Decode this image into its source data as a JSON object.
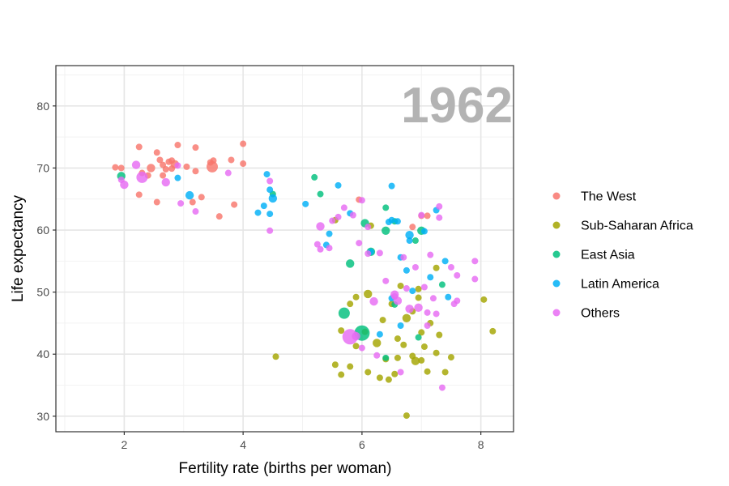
{
  "chart_data": {
    "type": "scatter",
    "title": "",
    "year_label": "1962",
    "xlabel": "Fertility rate (births per woman)",
    "ylabel": "Life expectancy",
    "xlim": [
      0.85,
      8.55
    ],
    "ylim": [
      27.5,
      86.5
    ],
    "x_ticks": [
      2,
      4,
      6,
      8
    ],
    "y_ticks": [
      30,
      40,
      50,
      60,
      70,
      80
    ],
    "grid": true,
    "legend_position": "right",
    "series": [
      {
        "name": "The West",
        "color": "#F8766D",
        "points": [
          {
            "x": 1.85,
            "y": 70.1,
            "s": 1
          },
          {
            "x": 1.95,
            "y": 70.0,
            "s": 1
          },
          {
            "x": 2.25,
            "y": 73.4,
            "s": 1
          },
          {
            "x": 2.55,
            "y": 72.5,
            "s": 1
          },
          {
            "x": 2.9,
            "y": 73.7,
            "s": 1
          },
          {
            "x": 3.2,
            "y": 73.3,
            "s": 1
          },
          {
            "x": 4.0,
            "y": 73.9,
            "s": 1
          },
          {
            "x": 2.3,
            "y": 69.2,
            "s": 1
          },
          {
            "x": 2.4,
            "y": 68.8,
            "s": 1
          },
          {
            "x": 2.45,
            "y": 70.0,
            "s": 2
          },
          {
            "x": 2.6,
            "y": 71.3,
            "s": 1
          },
          {
            "x": 2.65,
            "y": 70.5,
            "s": 1
          },
          {
            "x": 2.7,
            "y": 69.8,
            "s": 1
          },
          {
            "x": 2.8,
            "y": 71.2,
            "s": 1
          },
          {
            "x": 2.85,
            "y": 70.6,
            "s": 2
          },
          {
            "x": 2.8,
            "y": 69.9,
            "s": 1
          },
          {
            "x": 3.05,
            "y": 70.2,
            "s": 1
          },
          {
            "x": 3.2,
            "y": 69.5,
            "s": 1
          },
          {
            "x": 3.45,
            "y": 70.9,
            "s": 1
          },
          {
            "x": 3.5,
            "y": 71.2,
            "s": 1
          },
          {
            "x": 3.48,
            "y": 70.2,
            "s": 3
          },
          {
            "x": 3.8,
            "y": 71.3,
            "s": 1
          },
          {
            "x": 4.0,
            "y": 70.7,
            "s": 1
          },
          {
            "x": 2.25,
            "y": 65.7,
            "s": 1
          },
          {
            "x": 2.55,
            "y": 64.5,
            "s": 1
          },
          {
            "x": 2.65,
            "y": 68.8,
            "s": 1
          },
          {
            "x": 3.15,
            "y": 64.5,
            "s": 1
          },
          {
            "x": 3.3,
            "y": 65.3,
            "s": 1
          },
          {
            "x": 3.6,
            "y": 62.2,
            "s": 1
          },
          {
            "x": 3.85,
            "y": 64.1,
            "s": 1
          },
          {
            "x": 5.95,
            "y": 64.9,
            "s": 1
          },
          {
            "x": 7.0,
            "y": 62.3,
            "s": 1
          },
          {
            "x": 7.1,
            "y": 62.3,
            "s": 1
          },
          {
            "x": 6.85,
            "y": 60.5,
            "s": 1
          },
          {
            "x": 2.75,
            "y": 71.0,
            "s": 1
          }
        ]
      },
      {
        "name": "Sub-Saharan Africa",
        "color": "#A3A500",
        "points": [
          {
            "x": 4.55,
            "y": 39.6,
            "s": 1
          },
          {
            "x": 5.55,
            "y": 38.3,
            "s": 1
          },
          {
            "x": 5.65,
            "y": 36.7,
            "s": 1
          },
          {
            "x": 5.8,
            "y": 38.0,
            "s": 1
          },
          {
            "x": 5.9,
            "y": 41.3,
            "s": 1
          },
          {
            "x": 6.05,
            "y": 43.6,
            "s": 1
          },
          {
            "x": 6.1,
            "y": 37.1,
            "s": 1
          },
          {
            "x": 6.25,
            "y": 41.8,
            "s": 2
          },
          {
            "x": 6.3,
            "y": 36.2,
            "s": 1
          },
          {
            "x": 6.4,
            "y": 39.2,
            "s": 1
          },
          {
            "x": 6.45,
            "y": 35.9,
            "s": 1
          },
          {
            "x": 6.6,
            "y": 39.4,
            "s": 1
          },
          {
            "x": 6.7,
            "y": 41.5,
            "s": 1
          },
          {
            "x": 6.75,
            "y": 30.1,
            "s": 1
          },
          {
            "x": 6.85,
            "y": 39.7,
            "s": 1
          },
          {
            "x": 6.9,
            "y": 38.9,
            "s": 2
          },
          {
            "x": 7.0,
            "y": 39.0,
            "s": 1
          },
          {
            "x": 7.05,
            "y": 41.2,
            "s": 1
          },
          {
            "x": 7.1,
            "y": 37.2,
            "s": 1
          },
          {
            "x": 7.25,
            "y": 40.2,
            "s": 1
          },
          {
            "x": 7.3,
            "y": 43.1,
            "s": 1
          },
          {
            "x": 7.4,
            "y": 37.1,
            "s": 1
          },
          {
            "x": 7.5,
            "y": 39.5,
            "s": 1
          },
          {
            "x": 8.05,
            "y": 48.8,
            "s": 1
          },
          {
            "x": 8.2,
            "y": 43.7,
            "s": 1
          },
          {
            "x": 5.65,
            "y": 43.8,
            "s": 1
          },
          {
            "x": 5.9,
            "y": 49.2,
            "s": 1
          },
          {
            "x": 6.1,
            "y": 49.7,
            "s": 2
          },
          {
            "x": 6.35,
            "y": 45.5,
            "s": 1
          },
          {
            "x": 6.5,
            "y": 48.1,
            "s": 1
          },
          {
            "x": 6.6,
            "y": 42.5,
            "s": 1
          },
          {
            "x": 6.75,
            "y": 45.8,
            "s": 2
          },
          {
            "x": 6.85,
            "y": 46.9,
            "s": 1
          },
          {
            "x": 6.95,
            "y": 49.1,
            "s": 1
          },
          {
            "x": 7.0,
            "y": 43.5,
            "s": 1
          },
          {
            "x": 7.15,
            "y": 45.0,
            "s": 1
          },
          {
            "x": 6.65,
            "y": 51.0,
            "s": 1
          },
          {
            "x": 5.8,
            "y": 48.1,
            "s": 1
          },
          {
            "x": 6.55,
            "y": 36.8,
            "s": 1
          },
          {
            "x": 7.25,
            "y": 53.9,
            "s": 1
          },
          {
            "x": 6.95,
            "y": 50.5,
            "s": 1
          },
          {
            "x": 5.55,
            "y": 61.6,
            "s": 1
          },
          {
            "x": 6.15,
            "y": 60.7,
            "s": 1
          }
        ]
      },
      {
        "name": "East Asia",
        "color": "#00BF7D",
        "points": [
          {
            "x": 1.95,
            "y": 68.7,
            "s": 2
          },
          {
            "x": 4.5,
            "y": 65.8,
            "s": 1
          },
          {
            "x": 5.2,
            "y": 68.5,
            "s": 1
          },
          {
            "x": 5.3,
            "y": 65.8,
            "s": 1
          },
          {
            "x": 6.05,
            "y": 61.1,
            "s": 2
          },
          {
            "x": 6.15,
            "y": 56.5,
            "s": 2
          },
          {
            "x": 5.8,
            "y": 54.6,
            "s": 2
          },
          {
            "x": 6.4,
            "y": 63.6,
            "s": 1
          },
          {
            "x": 6.4,
            "y": 59.9,
            "s": 2
          },
          {
            "x": 6.55,
            "y": 61.4,
            "s": 1
          },
          {
            "x": 6.9,
            "y": 58.3,
            "s": 1
          },
          {
            "x": 7.0,
            "y": 59.9,
            "s": 2
          },
          {
            "x": 7.35,
            "y": 51.2,
            "s": 1
          },
          {
            "x": 5.7,
            "y": 46.6,
            "s": 3
          },
          {
            "x": 6.0,
            "y": 43.4,
            "s": 4
          },
          {
            "x": 6.4,
            "y": 39.4,
            "s": 1
          },
          {
            "x": 6.95,
            "y": 42.7,
            "s": 1
          },
          {
            "x": 6.55,
            "y": 48.0,
            "s": 1
          }
        ]
      },
      {
        "name": "Latin America",
        "color": "#00B0F6",
        "points": [
          {
            "x": 2.9,
            "y": 68.4,
            "s": 1
          },
          {
            "x": 3.1,
            "y": 65.6,
            "s": 2
          },
          {
            "x": 4.25,
            "y": 62.8,
            "s": 1
          },
          {
            "x": 4.35,
            "y": 63.9,
            "s": 1
          },
          {
            "x": 4.4,
            "y": 69.0,
            "s": 1
          },
          {
            "x": 4.45,
            "y": 62.6,
            "s": 1
          },
          {
            "x": 4.5,
            "y": 65.1,
            "s": 2
          },
          {
            "x": 4.45,
            "y": 66.5,
            "s": 1
          },
          {
            "x": 5.05,
            "y": 64.2,
            "s": 1
          },
          {
            "x": 5.45,
            "y": 59.4,
            "s": 1
          },
          {
            "x": 5.4,
            "y": 57.6,
            "s": 1
          },
          {
            "x": 5.6,
            "y": 67.2,
            "s": 1
          },
          {
            "x": 5.8,
            "y": 62.7,
            "s": 1
          },
          {
            "x": 6.15,
            "y": 56.5,
            "s": 1
          },
          {
            "x": 6.45,
            "y": 61.3,
            "s": 1
          },
          {
            "x": 6.5,
            "y": 61.6,
            "s": 1
          },
          {
            "x": 6.6,
            "y": 61.4,
            "s": 1
          },
          {
            "x": 6.5,
            "y": 67.1,
            "s": 1
          },
          {
            "x": 6.65,
            "y": 55.6,
            "s": 1
          },
          {
            "x": 6.75,
            "y": 53.5,
            "s": 1
          },
          {
            "x": 6.8,
            "y": 59.2,
            "s": 2
          },
          {
            "x": 6.8,
            "y": 58.3,
            "s": 1
          },
          {
            "x": 6.85,
            "y": 50.2,
            "s": 1
          },
          {
            "x": 7.05,
            "y": 59.8,
            "s": 1
          },
          {
            "x": 7.15,
            "y": 52.4,
            "s": 1
          },
          {
            "x": 7.25,
            "y": 63.2,
            "s": 1
          },
          {
            "x": 7.4,
            "y": 55.0,
            "s": 1
          },
          {
            "x": 7.45,
            "y": 49.2,
            "s": 1
          },
          {
            "x": 6.3,
            "y": 43.2,
            "s": 1
          },
          {
            "x": 6.5,
            "y": 49.0,
            "s": 1
          },
          {
            "x": 6.65,
            "y": 44.6,
            "s": 1
          }
        ]
      },
      {
        "name": "Others",
        "color": "#E76BF3",
        "points": [
          {
            "x": 1.95,
            "y": 68.1,
            "s": 1
          },
          {
            "x": 2.0,
            "y": 67.3,
            "s": 2
          },
          {
            "x": 2.2,
            "y": 70.5,
            "s": 2
          },
          {
            "x": 2.3,
            "y": 68.5,
            "s": 3
          },
          {
            "x": 2.7,
            "y": 67.7,
            "s": 2
          },
          {
            "x": 2.9,
            "y": 70.4,
            "s": 1
          },
          {
            "x": 2.95,
            "y": 64.3,
            "s": 1
          },
          {
            "x": 3.2,
            "y": 63.0,
            "s": 1
          },
          {
            "x": 3.75,
            "y": 69.2,
            "s": 1
          },
          {
            "x": 4.45,
            "y": 67.9,
            "s": 1
          },
          {
            "x": 4.45,
            "y": 59.9,
            "s": 1
          },
          {
            "x": 5.25,
            "y": 57.7,
            "s": 1
          },
          {
            "x": 5.3,
            "y": 60.6,
            "s": 2
          },
          {
            "x": 5.3,
            "y": 56.9,
            "s": 1
          },
          {
            "x": 5.45,
            "y": 57.1,
            "s": 1
          },
          {
            "x": 5.5,
            "y": 61.5,
            "s": 1
          },
          {
            "x": 5.6,
            "y": 62.1,
            "s": 1
          },
          {
            "x": 5.7,
            "y": 63.6,
            "s": 1
          },
          {
            "x": 5.85,
            "y": 62.4,
            "s": 1
          },
          {
            "x": 5.95,
            "y": 57.9,
            "s": 1
          },
          {
            "x": 6.0,
            "y": 64.8,
            "s": 1
          },
          {
            "x": 6.1,
            "y": 60.5,
            "s": 1
          },
          {
            "x": 6.1,
            "y": 56.2,
            "s": 1
          },
          {
            "x": 6.2,
            "y": 48.5,
            "s": 2
          },
          {
            "x": 6.3,
            "y": 56.3,
            "s": 1
          },
          {
            "x": 6.4,
            "y": 51.8,
            "s": 1
          },
          {
            "x": 6.55,
            "y": 49.6,
            "s": 2
          },
          {
            "x": 6.6,
            "y": 48.6,
            "s": 2
          },
          {
            "x": 6.7,
            "y": 55.6,
            "s": 1
          },
          {
            "x": 6.75,
            "y": 50.6,
            "s": 1
          },
          {
            "x": 6.8,
            "y": 47.3,
            "s": 2
          },
          {
            "x": 6.9,
            "y": 54.0,
            "s": 1
          },
          {
            "x": 6.95,
            "y": 47.5,
            "s": 2
          },
          {
            "x": 7.0,
            "y": 62.4,
            "s": 1
          },
          {
            "x": 7.05,
            "y": 50.8,
            "s": 1
          },
          {
            "x": 7.1,
            "y": 46.7,
            "s": 1
          },
          {
            "x": 7.1,
            "y": 44.6,
            "s": 1
          },
          {
            "x": 7.15,
            "y": 56.0,
            "s": 1
          },
          {
            "x": 7.2,
            "y": 49.0,
            "s": 1
          },
          {
            "x": 7.25,
            "y": 46.5,
            "s": 1
          },
          {
            "x": 7.3,
            "y": 62.0,
            "s": 1
          },
          {
            "x": 7.3,
            "y": 63.8,
            "s": 1
          },
          {
            "x": 7.35,
            "y": 34.6,
            "s": 1
          },
          {
            "x": 7.5,
            "y": 54.0,
            "s": 1
          },
          {
            "x": 7.55,
            "y": 48.1,
            "s": 1
          },
          {
            "x": 7.6,
            "y": 48.6,
            "s": 1
          },
          {
            "x": 7.6,
            "y": 52.7,
            "s": 1
          },
          {
            "x": 7.9,
            "y": 55.0,
            "s": 1
          },
          {
            "x": 7.9,
            "y": 52.1,
            "s": 1
          },
          {
            "x": 5.8,
            "y": 42.8,
            "s": 4
          },
          {
            "x": 5.9,
            "y": 42.9,
            "s": 2
          },
          {
            "x": 6.0,
            "y": 41.0,
            "s": 1
          },
          {
            "x": 6.25,
            "y": 39.8,
            "s": 1
          },
          {
            "x": 6.65,
            "y": 37.1,
            "s": 1
          },
          {
            "x": 6.55,
            "y": 49.3,
            "s": 1
          }
        ]
      }
    ]
  }
}
